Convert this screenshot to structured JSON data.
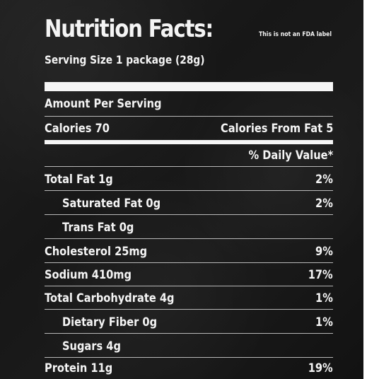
{
  "label": {
    "title": "Nutrition Facts:",
    "disclaimer": "This is not an FDA label",
    "serving_size": "Serving Size 1 package (28g)",
    "amount_per_serving": "Amount Per Serving",
    "calories": "Calories 70",
    "calories_from_fat": "Calories From Fat 5",
    "daily_value_header": "% Daily Value*",
    "nutrients": [
      {
        "name": "Total Fat 1g",
        "dv": "2%"
      },
      {
        "name": "Saturated Fat 0g",
        "dv": "2%"
      },
      {
        "name": "Trans Fat 0g",
        "dv": ""
      },
      {
        "name": "Cholesterol 25mg",
        "dv": "9%"
      },
      {
        "name": "Sodium 410mg",
        "dv": "17%"
      },
      {
        "name": "Total Carbohydrate 4g",
        "dv": "1%"
      },
      {
        "name": "Dietary Fiber 0g",
        "dv": "1%"
      },
      {
        "name": "Sugars 4g",
        "dv": ""
      },
      {
        "name": "Protein 11g",
        "dv": "19%"
      }
    ]
  },
  "colors": {
    "background": "#1a1a1a",
    "text": "#f4f4f4",
    "page": "#ffffff"
  }
}
